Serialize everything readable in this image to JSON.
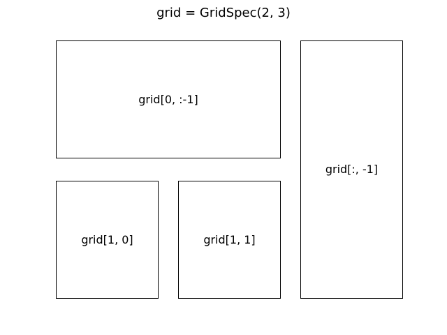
{
  "figure": {
    "title": "grid = GridSpec(2, 3)"
  },
  "panels": [
    {
      "label": "grid[0, :-1]"
    },
    {
      "label": "grid[:, -1]"
    },
    {
      "label": "grid[1, 0]"
    },
    {
      "label": "grid[1, 1]"
    }
  ]
}
